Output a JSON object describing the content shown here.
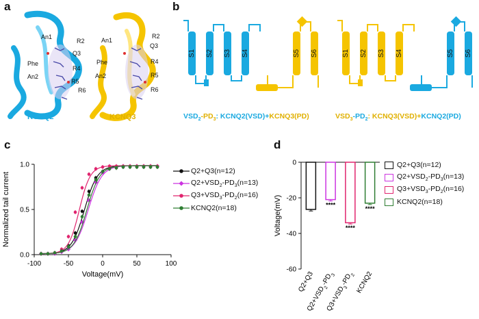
{
  "panels": {
    "a": "a",
    "b": "b",
    "c": "c",
    "d": "d"
  },
  "colors": {
    "kcnq2": "#1aa9e0",
    "kcnq3": "#f5c400",
    "black": "#111111",
    "magenta": "#cc33e0",
    "pink": "#e0246e",
    "green": "#2e7d32"
  },
  "panel_a": {
    "kcnq2_labels": [
      "An1",
      "R2",
      "Q3",
      "Phe",
      "R4",
      "An2",
      "R5",
      "R6"
    ],
    "kcnq3_labels": [
      "An1",
      "R2",
      "Q3",
      "Phe",
      "R4",
      "An2",
      "R5",
      "R6"
    ],
    "kcnq2_name": "KCNQ2",
    "kcnq3_name": "KCNQ3"
  },
  "panel_b": {
    "helices": [
      "S1",
      "S2",
      "S3",
      "S4",
      "S5",
      "S6"
    ],
    "construct1": {
      "p1": "VSD",
      "s1": "2",
      "p2": "-PD",
      "s2": "3",
      "p3": ": ",
      "p4": "KCNQ2(VSD)",
      "p5": "+",
      "p6": "KCNQ3(PD)"
    },
    "construct2": {
      "p1": "VSD",
      "s1": "3",
      "p2": "-PD",
      "s2": "2",
      "p3": ": ",
      "p4": "KCNQ3(VSD)",
      "p5": "+",
      "p6": "KCNQ2(PD)"
    }
  },
  "chart_data": [
    {
      "type": "scatter",
      "title": "",
      "xlabel": "Voltage(mV)",
      "ylabel": "Normalized tail current",
      "xlim": [
        -100,
        100
      ],
      "ylim": [
        0,
        1.0
      ],
      "xticks": [
        "-100",
        "-50",
        "0",
        "50",
        "100"
      ],
      "yticks": [
        "0.0",
        "0.5",
        "1.0"
      ],
      "x": [
        -90,
        -80,
        -70,
        -60,
        -50,
        -40,
        -30,
        -20,
        -10,
        0,
        10,
        20,
        30,
        40,
        50,
        60,
        70,
        80
      ],
      "series": [
        {
          "name": "Q2+Q3(n=12)",
          "color": "black",
          "v_half": -26.5,
          "slope": 9.5,
          "values": [
            0.01,
            0.01,
            0.02,
            0.04,
            0.1,
            0.24,
            0.48,
            0.7,
            0.85,
            0.92,
            0.95,
            0.96,
            0.97,
            0.97,
            0.97,
            0.97,
            0.97,
            0.97
          ]
        },
        {
          "name": "Q2+VSD2-PD3(n=13)",
          "color": "magenta",
          "v_half": -21.0,
          "slope": 10.0,
          "values": [
            0.01,
            0.01,
            0.01,
            0.03,
            0.06,
            0.16,
            0.36,
            0.6,
            0.8,
            0.91,
            0.95,
            0.97,
            0.98,
            0.98,
            0.98,
            0.98,
            0.98,
            0.98
          ]
        },
        {
          "name": "Q3+VSD3-PD2(n=16)",
          "color": "pink",
          "v_half": -34.0,
          "slope": 8.0,
          "values": [
            0.01,
            0.01,
            0.02,
            0.06,
            0.2,
            0.47,
            0.74,
            0.89,
            0.95,
            0.97,
            0.98,
            0.98,
            0.98,
            0.98,
            0.98,
            0.98,
            0.98,
            0.98
          ]
        },
        {
          "name": "KCNQ2(n=18)",
          "color": "green",
          "v_half": -23.0,
          "slope": 9.5,
          "values": [
            0.01,
            0.01,
            0.02,
            0.04,
            0.09,
            0.2,
            0.42,
            0.66,
            0.83,
            0.92,
            0.95,
            0.96,
            0.97,
            0.97,
            0.97,
            0.97,
            0.97,
            0.97
          ]
        }
      ]
    },
    {
      "type": "bar",
      "title": "",
      "xlabel": "",
      "ylabel": "Voltage(mV)",
      "ylim": [
        -60,
        0
      ],
      "yticks": [
        "0",
        "-20",
        "-40",
        "-60"
      ],
      "categories": [
        "Q2+Q3",
        "Q2+VSD2-PD3",
        "Q3+VSD3-PD2",
        "KCNQ2"
      ],
      "values": [
        -26.5,
        -21.0,
        -34.0,
        -23.0
      ],
      "errors": [
        0.9,
        0.8,
        0.7,
        0.8
      ],
      "significance": [
        "",
        "****",
        "****",
        "****"
      ],
      "colors": [
        "black",
        "magenta",
        "pink",
        "green"
      ]
    }
  ],
  "legend_c": [
    {
      "base": "Q2+Q3(n=12)",
      "color": "black",
      "marker": "circle"
    },
    {
      "base": "Q2+VSD",
      "sub1": "2",
      "mid": "-PD",
      "sub2": "3",
      "tail": "(n=13)",
      "color": "magenta",
      "marker": "diamond"
    },
    {
      "base": "Q3+VSD",
      "sub1": "3",
      "mid": "-PD",
      "sub2": "2",
      "tail": "(n=16)",
      "color": "pink",
      "marker": "circle"
    },
    {
      "base": "KCNQ2(n=18)",
      "color": "green",
      "marker": "circle"
    }
  ],
  "legend_d": [
    {
      "base": "Q2+Q3(n=12)",
      "color": "black"
    },
    {
      "base": "Q2+VSD",
      "sub1": "2",
      "mid": "-PD",
      "sub2": "3",
      "tail": "(n=13)",
      "color": "magenta"
    },
    {
      "base": "Q3+VSD",
      "sub1": "3",
      "mid": "-PD",
      "sub2": "2",
      "tail": "(n=16)",
      "color": "pink"
    },
    {
      "base": "KCNQ2(n=18)",
      "color": "green"
    }
  ],
  "bar_tick_labels": [
    {
      "base": "Q2+Q3"
    },
    {
      "base": "Q2+VSD",
      "sub1": "2",
      "mid": "-PD",
      "sub2": "3"
    },
    {
      "base": "Q3+VSD",
      "sub1": "3",
      "mid": "-PD",
      "sub2": "2"
    },
    {
      "base": "KCNQ2"
    }
  ]
}
